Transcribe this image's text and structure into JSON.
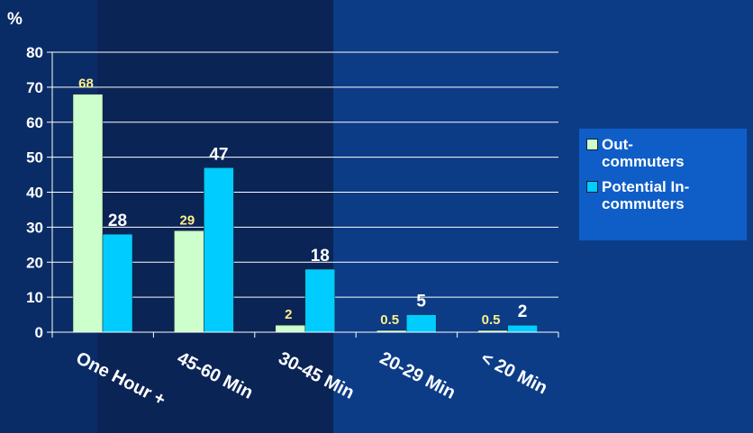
{
  "colors": {
    "background_dark": "#0a2456",
    "background": "#0c3c86",
    "out_commuters": "#ccffcc",
    "in_commuters": "#00ccff",
    "out_label": "#ffee88",
    "in_label": "#ffffff"
  },
  "chart_data": {
    "type": "bar",
    "ylabel": "%",
    "ylim": [
      0,
      80
    ],
    "yticks": [
      0,
      10,
      20,
      30,
      40,
      50,
      60,
      70,
      80
    ],
    "grid": true,
    "legend_position": "right",
    "categories": [
      "One Hour +",
      "45-60 Min",
      "30-45 Min",
      "20-29 Min",
      "< 20 Min"
    ],
    "series": [
      {
        "name": "Out-commuters",
        "legend_lines": [
          "Out-",
          "commuters"
        ],
        "values": [
          68,
          29,
          2,
          0.5,
          0.5
        ],
        "labels": [
          "68",
          "29",
          "2",
          "0.5",
          "0.5"
        ]
      },
      {
        "name": "Potential In-commuters",
        "legend_lines": [
          "Potential In-",
          "commuters"
        ],
        "values": [
          28,
          47,
          18,
          5,
          2
        ],
        "labels": [
          "28",
          "47",
          "18",
          "5",
          "2"
        ]
      }
    ]
  }
}
